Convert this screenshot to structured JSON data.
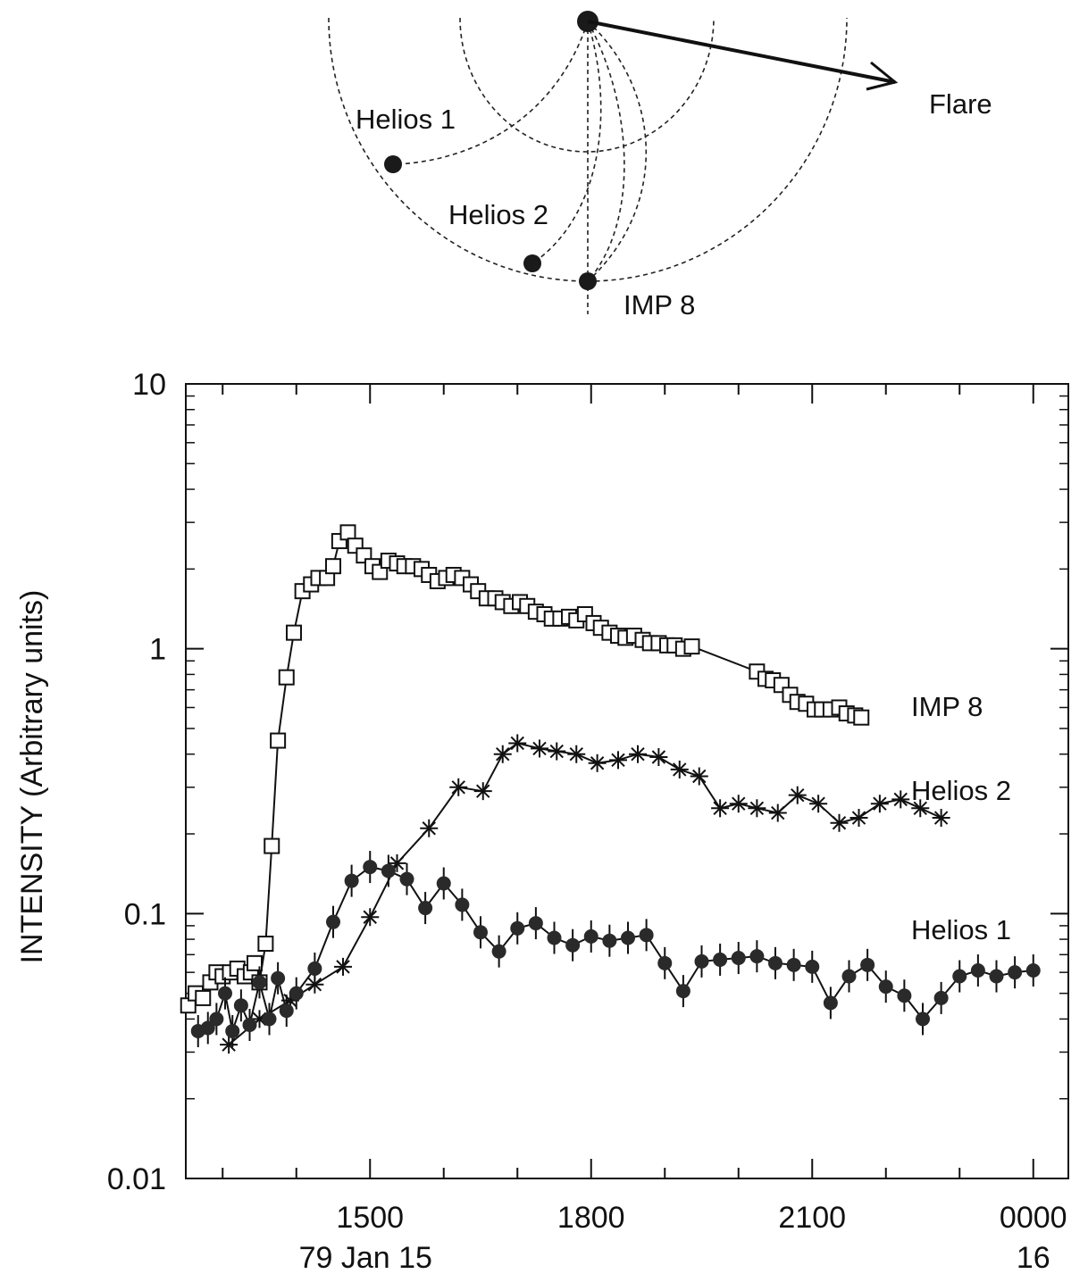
{
  "diagram": {
    "labels": {
      "helios1": "Helios 1",
      "helios2": "Helios 2",
      "imp8": "IMP 8",
      "flare": "Flare"
    }
  },
  "chart_data": {
    "type": "scatter",
    "title": "",
    "xlabel": "",
    "ylabel": "INTENSITY (Arbitrary units)",
    "y_scale": "log",
    "ylim": [
      0.01,
      10
    ],
    "xlim": [
      "79 Jan 15 1230",
      "79 Jan 16 0015"
    ],
    "x_tick_labels": [
      "1500",
      "1800",
      "2100",
      "0000"
    ],
    "x_date_labels": [
      "79 Jan 15",
      "16"
    ],
    "y_tick_labels": [
      "10",
      "1",
      "0.1",
      "0.01"
    ],
    "grid": false,
    "series": [
      {
        "name": "IMP 8",
        "marker": "open-square",
        "x": [
          "1232",
          "1238",
          "1244",
          "1250",
          "1255",
          "1300",
          "1306",
          "1312",
          "1318",
          "1323",
          "1326",
          "1330",
          "1335",
          "1340",
          "1345",
          "1352",
          "1358",
          "1405",
          "1412",
          "1418",
          "1425",
          "1430",
          "1435",
          "1442",
          "1448",
          "1455",
          "1502",
          "1508",
          "1515",
          "1522",
          "1528",
          "1535",
          "1542",
          "1548",
          "1555",
          "1602",
          "1608",
          "1615",
          "1622",
          "1628",
          "1635",
          "1642",
          "1648",
          "1655",
          "1702",
          "1708",
          "1715",
          "1722",
          "1728",
          "1735",
          "1742",
          "1748",
          "1755",
          "1802",
          "1808",
          "1815",
          "1822",
          "1828",
          "1835",
          "1842",
          "1848",
          "1855",
          "1902",
          "1908",
          "1915",
          "1922",
          "2015",
          "2022",
          "2028",
          "2035",
          "2042",
          "2048",
          "2055",
          "2102",
          "2108",
          "2115",
          "2122",
          "2128",
          "2135",
          "2140"
        ],
        "y": [
          0.045,
          0.05,
          0.048,
          0.055,
          0.06,
          0.058,
          0.06,
          0.062,
          0.058,
          0.06,
          0.065,
          0.055,
          0.077,
          0.18,
          0.45,
          0.78,
          1.15,
          1.65,
          1.75,
          1.85,
          1.85,
          2.05,
          2.55,
          2.75,
          2.45,
          2.25,
          2.05,
          1.95,
          2.15,
          2.1,
          2.05,
          2.05,
          2.0,
          1.9,
          1.8,
          1.85,
          1.9,
          1.85,
          1.75,
          1.65,
          1.55,
          1.55,
          1.5,
          1.45,
          1.5,
          1.45,
          1.38,
          1.35,
          1.3,
          1.3,
          1.32,
          1.28,
          1.35,
          1.25,
          1.2,
          1.15,
          1.12,
          1.1,
          1.12,
          1.08,
          1.05,
          1.05,
          1.03,
          1.03,
          1.0,
          1.02,
          0.82,
          0.77,
          0.76,
          0.73,
          0.67,
          0.63,
          0.62,
          0.59,
          0.59,
          0.59,
          0.6,
          0.57,
          0.56,
          0.55
        ]
      },
      {
        "name": "Helios 2",
        "marker": "asterisk",
        "x": [
          "1305",
          "1330",
          "1355",
          "1415",
          "1438",
          "1500",
          "1522",
          "1548",
          "1612",
          "1632",
          "1648",
          "1700",
          "1718",
          "1732",
          "1748",
          "1805",
          "1822",
          "1838",
          "1855",
          "1912",
          "1928",
          "1945",
          "2000",
          "2015",
          "2032",
          "2048",
          "2105",
          "2122",
          "2138",
          "2155",
          "2212",
          "2228",
          "2245"
        ],
        "y": [
          0.032,
          0.04,
          0.047,
          0.054,
          0.063,
          0.097,
          0.155,
          0.21,
          0.3,
          0.29,
          0.4,
          0.44,
          0.42,
          0.41,
          0.4,
          0.37,
          0.38,
          0.4,
          0.39,
          0.35,
          0.33,
          0.25,
          0.26,
          0.25,
          0.24,
          0.28,
          0.26,
          0.22,
          0.23,
          0.26,
          0.27,
          0.25,
          0.23
        ]
      },
      {
        "name": "Helios 1",
        "marker": "filled-circle",
        "x": [
          "1240",
          "1248",
          "1255",
          "1302",
          "1308",
          "1315",
          "1322",
          "1330",
          "1338",
          "1345",
          "1352",
          "1400",
          "1415",
          "1430",
          "1445",
          "1500",
          "1515",
          "1530",
          "1545",
          "1600",
          "1615",
          "1630",
          "1645",
          "1700",
          "1715",
          "1730",
          "1745",
          "1800",
          "1815",
          "1830",
          "1845",
          "1900",
          "1915",
          "1930",
          "1945",
          "2000",
          "2015",
          "2030",
          "2045",
          "2100",
          "2115",
          "2130",
          "2145",
          "2200",
          "2215",
          "2230",
          "2245",
          "2300",
          "2315",
          "2330",
          "2345",
          "0000"
        ],
        "y": [
          0.036,
          0.037,
          0.04,
          0.05,
          0.036,
          0.045,
          0.038,
          0.055,
          0.04,
          0.057,
          0.043,
          0.05,
          0.062,
          0.093,
          0.133,
          0.15,
          0.145,
          0.135,
          0.105,
          0.13,
          0.108,
          0.085,
          0.072,
          0.088,
          0.092,
          0.081,
          0.076,
          0.082,
          0.079,
          0.081,
          0.083,
          0.065,
          0.051,
          0.066,
          0.067,
          0.068,
          0.069,
          0.065,
          0.064,
          0.063,
          0.046,
          0.058,
          0.064,
          0.053,
          0.049,
          0.04,
          0.048,
          0.058,
          0.061,
          0.058,
          0.06,
          0.061
        ]
      }
    ]
  }
}
